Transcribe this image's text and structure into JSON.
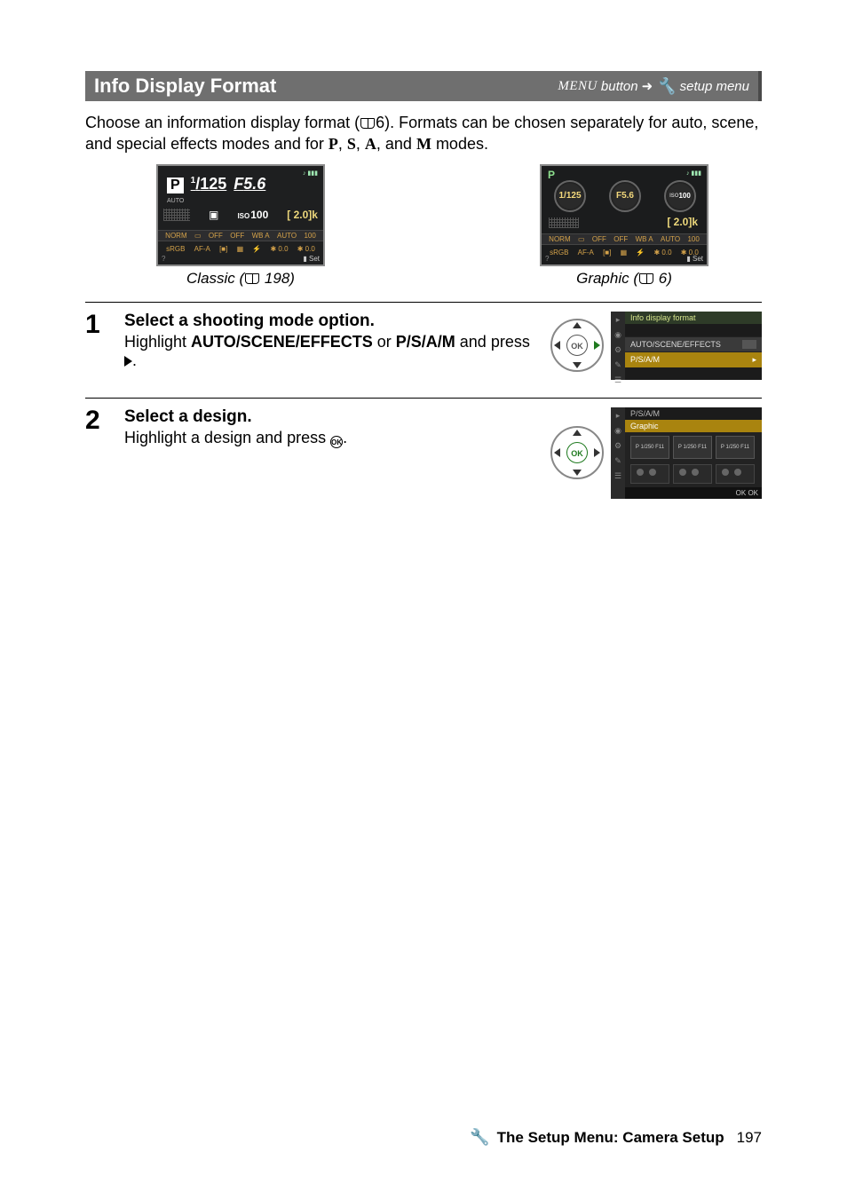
{
  "titleBar": {
    "title": "Info Display Format",
    "menuWord": "MENU",
    "buttonWord": "button",
    "arrow": "➜",
    "setupMenu": "setup menu"
  },
  "intro": {
    "line1a": "Choose an information display format (",
    "introPageRef": "6",
    "line1b": ").  Formats can be chosen separately for auto, scene, and special effects modes and for ",
    "modes": [
      "P",
      "S",
      "A",
      "M"
    ],
    "lineEnd": " modes."
  },
  "classic": {
    "caption_prefix": "Classic (",
    "caption_page": "198",
    "caption_suffix": ")",
    "modeLetter": "P",
    "shutter_num": "1",
    "shutter_den": "125",
    "aperture_prefix": "F",
    "aperture": "5.6",
    "auto": "AUTO",
    "iso_label": "ISO",
    "iso": "100",
    "remaining": "[ 2.0]k",
    "row1": [
      "NORM",
      "▭",
      "OFF",
      "OFF",
      "WB A",
      "AUTO",
      "100"
    ],
    "row2": [
      "sRGB",
      "AF-A",
      "[■]",
      "▦",
      "⚡",
      "✱ 0.0",
      "✱ 0.0"
    ],
    "set": "Set",
    "q": "?"
  },
  "graphic": {
    "caption_prefix": "Graphic (",
    "caption_page": "6",
    "caption_suffix": ")",
    "modeLetter": "P",
    "shutter": "1/125",
    "aperture": "F5.6",
    "iso_label": "ISO",
    "iso": "100",
    "remaining": "[ 2.0]k",
    "row1": [
      "NORM",
      "▭",
      "OFF",
      "OFF",
      "WB A",
      "AUTO",
      "100"
    ],
    "row2": [
      "sRGB",
      "AF-A",
      "[■]",
      "▦",
      "⚡",
      "✱ 0.0",
      "✱ 0.0"
    ],
    "set": "Set",
    "q": "?"
  },
  "steps": {
    "s1": {
      "num": "1",
      "title": "Select a shooting mode option.",
      "desc_a": "Highlight ",
      "desc_bold1": "AUTO/SCENE/EFFECTS",
      "desc_b": " or ",
      "desc_bold2": "P/S/A/M",
      "desc_c": " and press ",
      "ok": "OK",
      "menu": {
        "header": "Info display format",
        "item1": "AUTO/SCENE/EFFECTS",
        "item2": "P/S/A/M"
      }
    },
    "s2": {
      "num": "2",
      "title": "Select a design.",
      "desc_a": "Highlight a design and press ",
      "ok_inline": "OK",
      "menu": {
        "hdr1": "P/S/A/M",
        "hdr2": "Graphic",
        "thumb_label": "P 1/250 F11",
        "foot": "OK OK"
      }
    }
  },
  "footer": {
    "text": "The Setup Menu: Camera Setup",
    "page": "197"
  }
}
